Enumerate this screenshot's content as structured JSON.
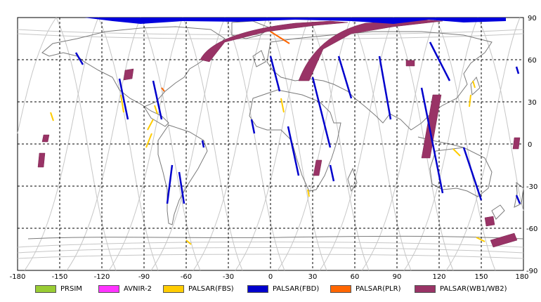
{
  "map": {
    "lon_ticks": [
      "-180",
      "-150",
      "-120",
      "-90",
      "-60",
      "-30",
      "0",
      "30",
      "60",
      "90",
      "120",
      "150",
      "180"
    ],
    "lat_ticks": [
      "90",
      "60",
      "30",
      "0",
      "-30",
      "-60",
      "-90"
    ],
    "lon_range": [
      -180,
      180
    ],
    "lat_range": [
      -90,
      90
    ],
    "grid": true,
    "colors": {
      "background": "#ffffff",
      "coast": "#777777",
      "orbit": "#c4c4c4",
      "grid": "#000000"
    }
  },
  "legend": [
    {
      "label": "PRSIM",
      "color": "#99cc33"
    },
    {
      "label": "AVNIR-2",
      "color": "#ff33ff"
    },
    {
      "label": "PALSAR(FBS)",
      "color": "#ffcc00"
    },
    {
      "label": "PALSAR(FBD)",
      "color": "#0000cc"
    },
    {
      "label": "PALSAR(PLR)",
      "color": "#ff6600"
    },
    {
      "label": "PALSAR(WB1/WB2)",
      "color": "#993366"
    }
  ]
}
